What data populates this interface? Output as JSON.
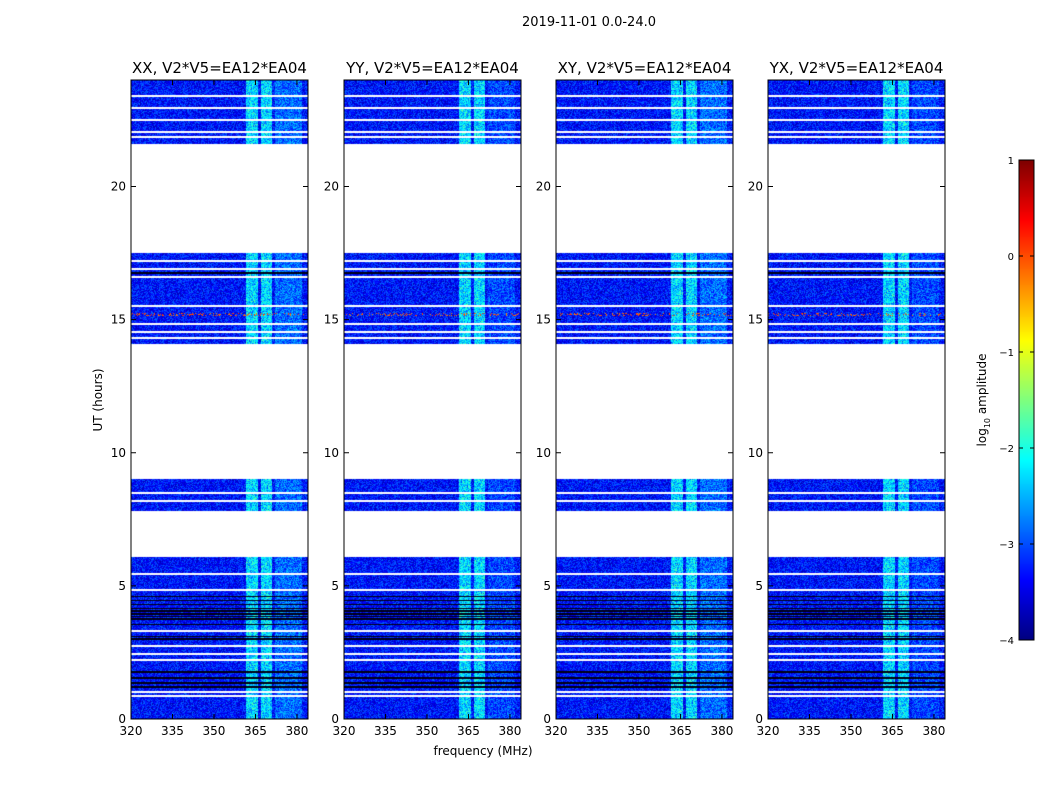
{
  "chart_data": {
    "type": "heatmap",
    "title": "2019-11-01 0.0-24.0",
    "xlabel": "frequency (MHz)",
    "ylabel": "UT (hours)",
    "xlim": [
      320,
      384
    ],
    "ylim": [
      0,
      24
    ],
    "xticks": [
      "320",
      "335",
      "350",
      "365",
      "380"
    ],
    "xtick_values": [
      320,
      335,
      350,
      365,
      380
    ],
    "yticks": [
      "0",
      "5",
      "10",
      "15",
      "20"
    ],
    "ytick_values": [
      0,
      5,
      10,
      15,
      20
    ],
    "panels": [
      {
        "title": "XX, V2*V5=EA12*EA04"
      },
      {
        "title": "YY, V2*V5=EA12*EA04"
      },
      {
        "title": "XY, V2*V5=EA12*EA04"
      },
      {
        "title": "YX, V2*V5=EA12*EA04"
      }
    ],
    "data_segments_hours": [
      [
        0,
        4.8
      ],
      [
        4.9,
        6.1
      ],
      [
        7.8,
        9.0
      ],
      [
        14.1,
        17.5
      ],
      [
        21.6,
        24
      ]
    ],
    "white_lines_hours": [
      0.85,
      1.0,
      2.2,
      2.45,
      2.75,
      3.3,
      5.45,
      8.2,
      8.5,
      14.3,
      14.55,
      14.85,
      15.5,
      16.6,
      16.9,
      17.2,
      21.85,
      22.05,
      22.5,
      22.95,
      23.4
    ],
    "black_lines_hours": [
      1.2,
      1.35,
      1.55,
      1.75,
      3.0,
      3.1,
      3.55,
      3.75,
      3.85,
      3.95,
      4.05,
      4.15,
      4.3,
      4.45,
      4.6,
      16.75
    ],
    "bright_bands_mhz": [
      [
        361.5,
        366
      ],
      [
        367,
        371
      ],
      [
        372,
        382
      ]
    ],
    "background_log_amplitude": -3.3,
    "colorbar": {
      "label": "log10 amplitude",
      "label_main": "log",
      "label_sub": "10",
      "label_rest": " amplitude",
      "colormap": "jet",
      "range": [
        -4,
        1
      ],
      "ticks": [
        "1",
        "0",
        "−1",
        "−2",
        "−3",
        "−4"
      ],
      "tick_values": [
        1,
        0,
        -1,
        -2,
        -3,
        -4
      ]
    }
  }
}
